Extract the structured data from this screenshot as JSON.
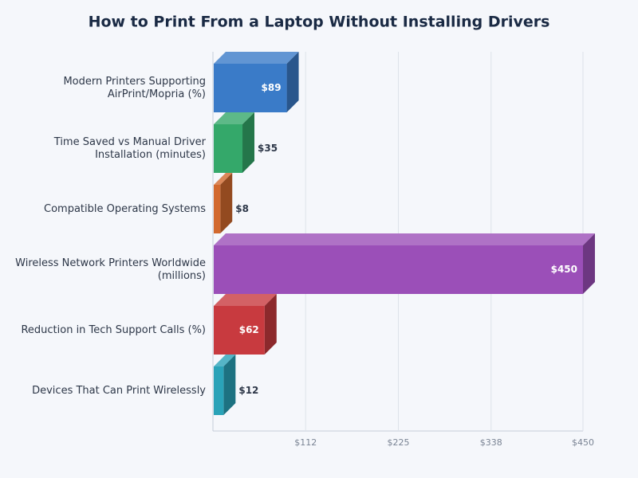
{
  "chart_data": {
    "type": "bar",
    "orientation": "horizontal",
    "title": "How to Print From a Laptop Without Installing Drivers",
    "categories": [
      "Modern Printers Supporting AirPrint/Mopria (%)",
      "Time Saved vs Manual Driver Installation (minutes)",
      "Compatible Operating Systems",
      "Wireless Network Printers Worldwide (millions)",
      "Reduction in Tech Support Calls (%)",
      "Devices That Can Print Wirelessly"
    ],
    "values": [
      89,
      35,
      8,
      450,
      62,
      12
    ],
    "value_labels": [
      "$89",
      "$35",
      "$8",
      "$450",
      "$62",
      "$12"
    ],
    "colors": [
      "#3a7bc8",
      "#34a86a",
      "#d2692e",
      "#9b4fb8",
      "#c83a3f",
      "#2aa3b8"
    ],
    "xlim": [
      0,
      450
    ],
    "xticks": [
      {
        "value": 112,
        "label": "$112"
      },
      {
        "value": 225,
        "label": "$225"
      },
      {
        "value": 338,
        "label": "$338"
      },
      {
        "value": 450,
        "label": "$450"
      }
    ],
    "grid": true
  }
}
